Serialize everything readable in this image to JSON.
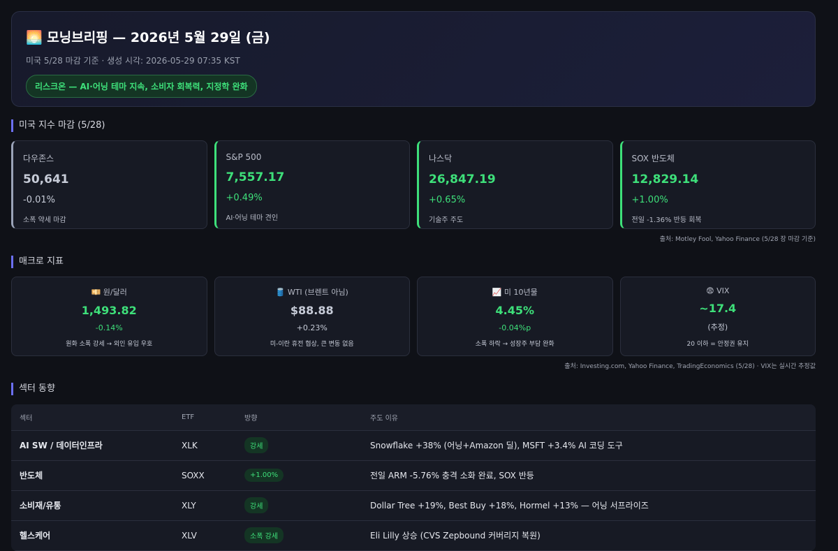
{
  "header": {
    "title": "🌅 모닝브리핑 — 2026년 5월 29일 (금)",
    "subtitle": "미국 5/28 마감 기준 · 생성 시각: 2026-05-29 07:35 KST",
    "badge": "리스크온 — AI·어닝 테마 지속, 소비자 회복력, 지정학 완화"
  },
  "indices": {
    "title": "미국 지수 마감 (5/28)",
    "cards": [
      {
        "name": "다우존스",
        "value": "50,641",
        "change": "-0.01%",
        "note": "소폭 약세 마감",
        "tone": "neutral"
      },
      {
        "name": "S&P 500",
        "value": "7,557.17",
        "change": "+0.49%",
        "note": "AI·어닝 테마 견인",
        "tone": "up"
      },
      {
        "name": "나스닥",
        "value": "26,847.19",
        "change": "+0.65%",
        "note": "기술주 주도",
        "tone": "up"
      },
      {
        "name": "SOX 반도체",
        "value": "12,829.14",
        "change": "+1.00%",
        "note": "전일 -1.36% 반등 회복",
        "tone": "up"
      }
    ],
    "source": "출처: Motley Fool, Yahoo Finance (5/28 장 마감 기준)"
  },
  "macro": {
    "title": "매크로 지표",
    "cards": [
      {
        "label": "💴 원/달러",
        "value": "1,493.82",
        "change": "-0.14%",
        "note": "원화 소폭 강세 → 외인 유입 우호",
        "tone": "up"
      },
      {
        "label": "🛢️ WTI (브렌트 아님)",
        "value": "$88.88",
        "change": "+0.23%",
        "note": "미-이란 휴전 협상, 큰 변동 없음",
        "tone": "neutral"
      },
      {
        "label": "📈 미 10년물",
        "value": "4.45%",
        "change": "-0.04%p",
        "note": "소폭 하락 → 성장주 부담 완화",
        "tone": "up"
      },
      {
        "label": "😨 VIX",
        "value": "~17.4",
        "change": "(추정)",
        "note": "20 이하 = 안정권 유지",
        "tone": "up-value"
      }
    ],
    "source": "출처: Investing.com, Yahoo Finance, TradingEconomics (5/28) · VIX는 실시간 추정값"
  },
  "sectors": {
    "title": "섹터 동향",
    "columns": [
      "섹터",
      "ETF",
      "방향",
      "주도 이유"
    ],
    "rows": [
      [
        "AI SW / 데이터인프라",
        "XLK",
        "강세",
        "Snowflake +38% (어닝+Amazon 딜), MSFT +3.4% AI 코딩 도구"
      ],
      [
        "반도체",
        "SOXX",
        "+1.00%",
        "전일 ARM -5.76% 충격 소화 완료, SOX 반등"
      ],
      [
        "소비재/유통",
        "XLY",
        "강세",
        "Dollar Tree +19%, Best Buy +18%, Hormel +13% — 어닝 서프라이즈"
      ],
      [
        "헬스케어",
        "XLV",
        "소폭 강세",
        "Eli Lilly 상승 (CVS Zepbound 커버리지 복원)"
      ]
    ]
  }
}
